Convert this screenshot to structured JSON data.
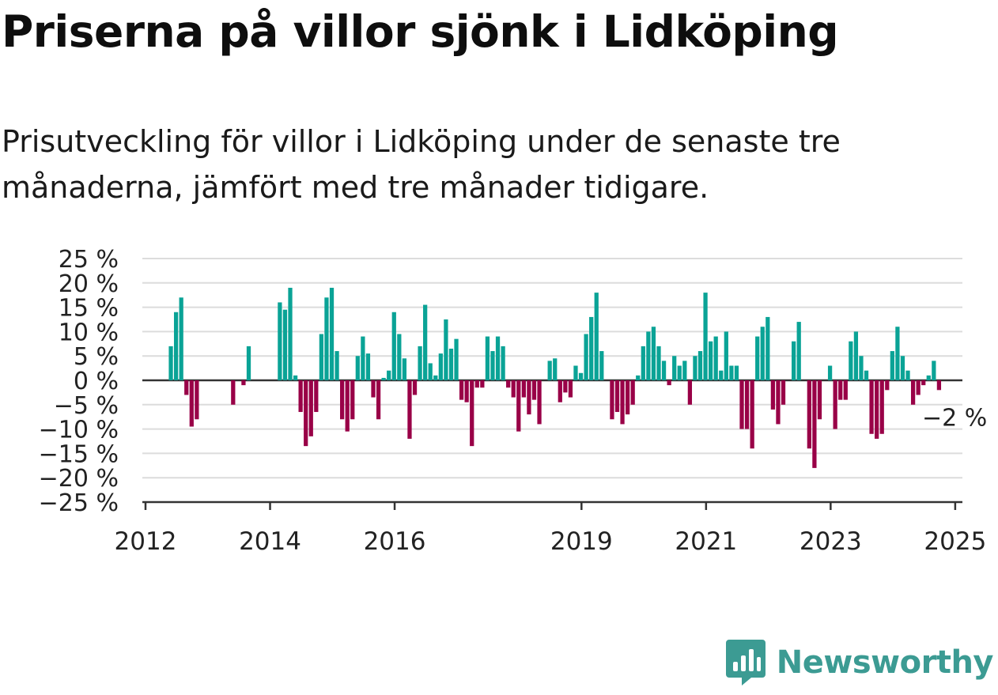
{
  "title": "Priserna på villor sjönk i Lidköping",
  "subtitle": "Prisutveckling för villor i Lidköping under de senaste tre månaderna, jämfört med tre månader tidigare.",
  "brand": {
    "name": "Newsworthy",
    "icon": "newsworthy-logo-icon"
  },
  "colors": {
    "positive": "#0aa396",
    "negative": "#990047",
    "grid": "#dcdcdc",
    "axis": "#333333"
  },
  "chart_data": {
    "type": "bar",
    "x_unit": "month",
    "start": "2012-01",
    "end": "2025-02",
    "ylim": [
      -25,
      25
    ],
    "y_ticks": [
      25,
      20,
      15,
      10,
      5,
      0,
      -5,
      -10,
      -15,
      -20,
      -25
    ],
    "y_tick_suffix": " %",
    "x_tick_labels": [
      "2012",
      "2014",
      "2016",
      "2019",
      "2021",
      "2023",
      "2025"
    ],
    "grid": true,
    "annotation": {
      "text": "−2 %",
      "date": "2025-01",
      "value": -2
    },
    "points": [
      [
        "2012-06",
        7
      ],
      [
        "2012-07",
        14
      ],
      [
        "2012-08",
        17
      ],
      [
        "2012-09",
        -3
      ],
      [
        "2012-10",
        -9.5
      ],
      [
        "2012-11",
        -8
      ],
      [
        "2013-06",
        -5
      ],
      [
        "2013-08",
        -1
      ],
      [
        "2013-09",
        7
      ],
      [
        "2014-03",
        16
      ],
      [
        "2014-04",
        14.5
      ],
      [
        "2014-05",
        19
      ],
      [
        "2014-06",
        1
      ],
      [
        "2014-07",
        -6.5
      ],
      [
        "2014-08",
        -13.5
      ],
      [
        "2014-09",
        -11.5
      ],
      [
        "2014-10",
        -6.5
      ],
      [
        "2014-11",
        9.5
      ],
      [
        "2014-12",
        17
      ],
      [
        "2015-01",
        19
      ],
      [
        "2015-02",
        6
      ],
      [
        "2015-03",
        -8
      ],
      [
        "2015-04",
        -10.5
      ],
      [
        "2015-05",
        -8
      ],
      [
        "2015-06",
        5
      ],
      [
        "2015-07",
        9
      ],
      [
        "2015-08",
        5.5
      ],
      [
        "2015-09",
        -3.5
      ],
      [
        "2015-10",
        -8
      ],
      [
        "2015-11",
        0.5
      ],
      [
        "2015-12",
        2
      ],
      [
        "2016-01",
        14
      ],
      [
        "2016-02",
        9.5
      ],
      [
        "2016-03",
        4.5
      ],
      [
        "2016-04",
        -12
      ],
      [
        "2016-05",
        -3
      ],
      [
        "2016-06",
        7
      ],
      [
        "2016-07",
        15.5
      ],
      [
        "2016-08",
        3.5
      ],
      [
        "2016-09",
        1
      ],
      [
        "2016-10",
        5.5
      ],
      [
        "2016-11",
        12.5
      ],
      [
        "2016-12",
        6.5
      ],
      [
        "2017-01",
        8.5
      ],
      [
        "2017-02",
        -4
      ],
      [
        "2017-03",
        -4.5
      ],
      [
        "2017-04",
        -13.5
      ],
      [
        "2017-05",
        -1.5
      ],
      [
        "2017-06",
        -1.5
      ],
      [
        "2017-07",
        9
      ],
      [
        "2017-08",
        6
      ],
      [
        "2017-09",
        9
      ],
      [
        "2017-10",
        7
      ],
      [
        "2017-11",
        -1.5
      ],
      [
        "2017-12",
        -3.5
      ],
      [
        "2018-01",
        -10.5
      ],
      [
        "2018-02",
        -3.5
      ],
      [
        "2018-03",
        -7
      ],
      [
        "2018-04",
        -4
      ],
      [
        "2018-05",
        -9
      ],
      [
        "2018-07",
        4
      ],
      [
        "2018-08",
        4.5
      ],
      [
        "2018-09",
        -4.5
      ],
      [
        "2018-10",
        -2.5
      ],
      [
        "2018-11",
        -3.5
      ],
      [
        "2018-12",
        3
      ],
      [
        "2019-01",
        1.5
      ],
      [
        "2019-02",
        9.5
      ],
      [
        "2019-03",
        13
      ],
      [
        "2019-04",
        18
      ],
      [
        "2019-05",
        6
      ],
      [
        "2019-07",
        -8
      ],
      [
        "2019-08",
        -6.5
      ],
      [
        "2019-09",
        -9
      ],
      [
        "2019-10",
        -7
      ],
      [
        "2019-11",
        -5
      ],
      [
        "2019-12",
        1
      ],
      [
        "2020-01",
        7
      ],
      [
        "2020-02",
        10
      ],
      [
        "2020-03",
        11
      ],
      [
        "2020-04",
        7
      ],
      [
        "2020-05",
        4
      ],
      [
        "2020-06",
        -1
      ],
      [
        "2020-07",
        5
      ],
      [
        "2020-08",
        3
      ],
      [
        "2020-09",
        4
      ],
      [
        "2020-10",
        -5
      ],
      [
        "2020-11",
        5
      ],
      [
        "2020-12",
        6
      ],
      [
        "2021-01",
        18
      ],
      [
        "2021-02",
        8
      ],
      [
        "2021-03",
        9
      ],
      [
        "2021-04",
        2
      ],
      [
        "2021-05",
        10
      ],
      [
        "2021-06",
        3
      ],
      [
        "2021-07",
        3
      ],
      [
        "2021-08",
        -10
      ],
      [
        "2021-09",
        -10
      ],
      [
        "2021-10",
        -14
      ],
      [
        "2021-11",
        9
      ],
      [
        "2021-12",
        11
      ],
      [
        "2022-01",
        13
      ],
      [
        "2022-02",
        -6
      ],
      [
        "2022-03",
        -9
      ],
      [
        "2022-04",
        -5
      ],
      [
        "2022-06",
        8
      ],
      [
        "2022-07",
        12
      ],
      [
        "2022-09",
        -14
      ],
      [
        "2022-10",
        -18
      ],
      [
        "2022-11",
        -8
      ],
      [
        "2023-01",
        3
      ],
      [
        "2023-02",
        -10
      ],
      [
        "2023-03",
        -4
      ],
      [
        "2023-04",
        -4
      ],
      [
        "2023-05",
        8
      ],
      [
        "2023-06",
        10
      ],
      [
        "2023-07",
        5
      ],
      [
        "2023-08",
        2
      ],
      [
        "2023-09",
        -11
      ],
      [
        "2023-10",
        -12
      ],
      [
        "2023-11",
        -11
      ],
      [
        "2023-12",
        -2
      ],
      [
        "2024-01",
        6
      ],
      [
        "2024-02",
        11
      ],
      [
        "2024-03",
        5
      ],
      [
        "2024-04",
        2
      ],
      [
        "2024-05",
        -5
      ],
      [
        "2024-06",
        -3
      ],
      [
        "2024-07",
        -1
      ],
      [
        "2024-08",
        1
      ],
      [
        "2024-09",
        4
      ],
      [
        "2024-10",
        -2
      ]
    ]
  }
}
